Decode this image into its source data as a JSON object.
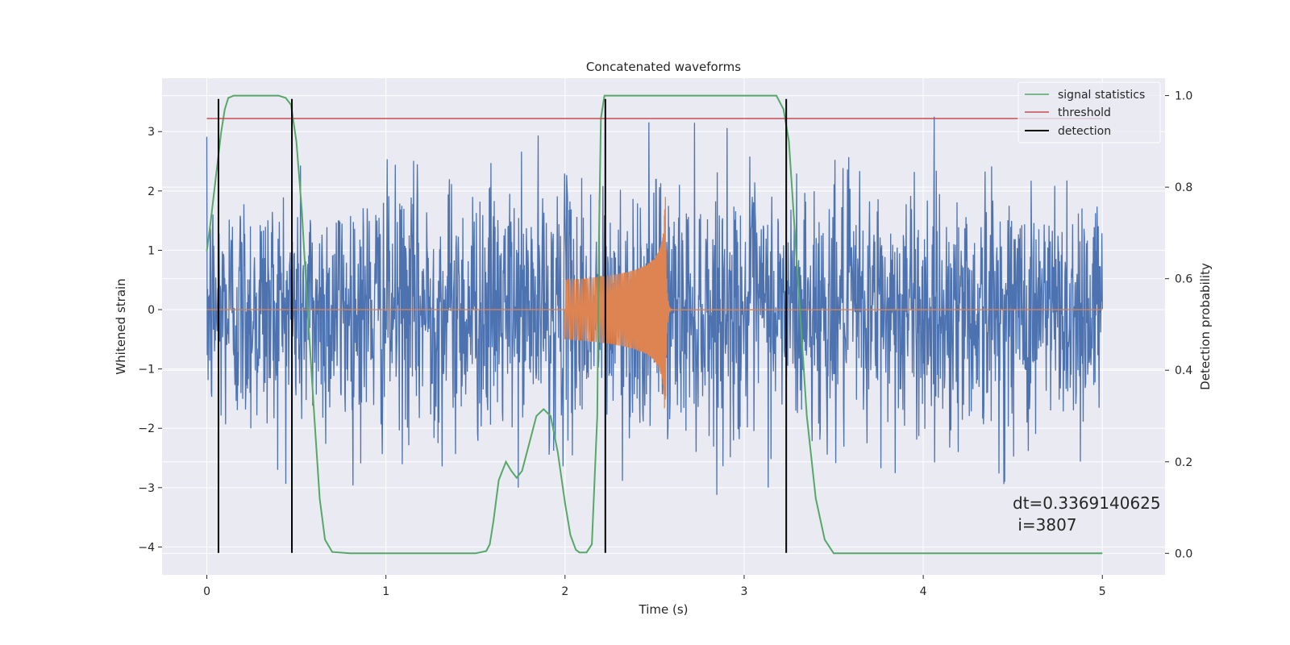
{
  "chart_data": {
    "type": "line",
    "title": "Concatenated waveforms",
    "xlabel": "Time (s)",
    "ylabel_left": "Whitened strain",
    "ylabel_right": "Detection probability",
    "xlim": [
      -0.25,
      5.35
    ],
    "ylim_left": [
      -4.47,
      3.9
    ],
    "ylim_right": [
      -0.047,
      1.038
    ],
    "x_ticks": [
      0,
      1,
      2,
      3,
      4,
      5
    ],
    "y_ticks_left": [
      3,
      2,
      1,
      0,
      -1,
      -2,
      -3,
      -4
    ],
    "y_tick_labels_left": [
      "3",
      "2",
      "1",
      "0",
      "−1",
      "−2",
      "−3",
      "−4"
    ],
    "y_ticks_right": [
      1.0,
      0.8,
      0.6,
      0.4,
      0.2,
      0.0
    ],
    "y_tick_labels_right": [
      "1.0",
      "0.8",
      "0.6",
      "0.4",
      "0.2",
      "0.0"
    ],
    "grid": true,
    "legend_position": "top-right",
    "colors": {
      "strain": "#4c72b0",
      "template": "#dd8452",
      "signal_statistics": "#55a868",
      "threshold": "#c44e52",
      "detection": "#000000",
      "axes_bg": "#eaeaf2",
      "grid": "#ffffff"
    },
    "series": [
      {
        "name": "signal statistics",
        "axis": "right",
        "x": [
          0.0,
          0.02,
          0.05,
          0.08,
          0.1,
          0.12,
          0.15,
          0.2,
          0.3,
          0.4,
          0.44,
          0.47,
          0.5,
          0.53,
          0.56,
          0.6,
          0.63,
          0.66,
          0.7,
          0.8,
          1.0,
          1.3,
          1.5,
          1.56,
          1.58,
          1.6,
          1.63,
          1.67,
          1.7,
          1.73,
          1.76,
          1.8,
          1.84,
          1.88,
          1.92,
          1.96,
          2.0,
          2.03,
          2.06,
          2.08,
          2.12,
          2.15,
          2.18,
          2.19,
          2.2,
          2.22,
          2.25,
          2.3,
          2.5,
          2.8,
          3.1,
          3.18,
          3.22,
          3.25,
          3.3,
          3.35,
          3.4,
          3.45,
          3.5,
          3.7,
          4.0,
          4.5,
          5.0
        ],
        "y": [
          0.66,
          0.72,
          0.82,
          0.92,
          0.97,
          0.995,
          1.0,
          1.0,
          1.0,
          1.0,
          0.995,
          0.98,
          0.9,
          0.75,
          0.55,
          0.3,
          0.12,
          0.03,
          0.003,
          0.0,
          0.0,
          0.0,
          0.0,
          0.005,
          0.02,
          0.07,
          0.16,
          0.2,
          0.18,
          0.165,
          0.18,
          0.24,
          0.3,
          0.315,
          0.3,
          0.22,
          0.11,
          0.04,
          0.008,
          0.002,
          0.002,
          0.02,
          0.3,
          0.7,
          0.95,
          1.0,
          1.0,
          1.0,
          1.0,
          1.0,
          1.0,
          1.0,
          0.97,
          0.9,
          0.6,
          0.3,
          0.12,
          0.03,
          0.0,
          0.0,
          0.0,
          0.0,
          0.0
        ]
      },
      {
        "name": "threshold",
        "axis": "right",
        "x": [
          0.0,
          5.0
        ],
        "y": [
          0.95,
          0.95
        ]
      },
      {
        "name": "detection",
        "axis": "left",
        "x_positions": [
          0.065,
          0.475,
          2.225,
          3.235
        ],
        "y_range": [
          -4.1,
          3.55
        ]
      }
    ],
    "strain_envelope": {
      "x": [
        0.0,
        0.5,
        1.0,
        1.5,
        2.0,
        2.5,
        3.0,
        3.5,
        4.0,
        4.5,
        5.0
      ],
      "max_abs": [
        3.2,
        2.9,
        3.0,
        3.0,
        3.0,
        3.4,
        3.0,
        3.0,
        3.3,
        2.9,
        3.1
      ]
    },
    "template_waveform": {
      "x_start": 2.0,
      "x_merger": 2.56,
      "x_end": 2.6,
      "amplitude_start": 0.5,
      "amplitude_peak": 2.0
    },
    "annotations": [
      "dt=0.3369140625",
      " i=3807"
    ],
    "legend": [
      "signal statistics",
      "threshold",
      "detection"
    ]
  }
}
